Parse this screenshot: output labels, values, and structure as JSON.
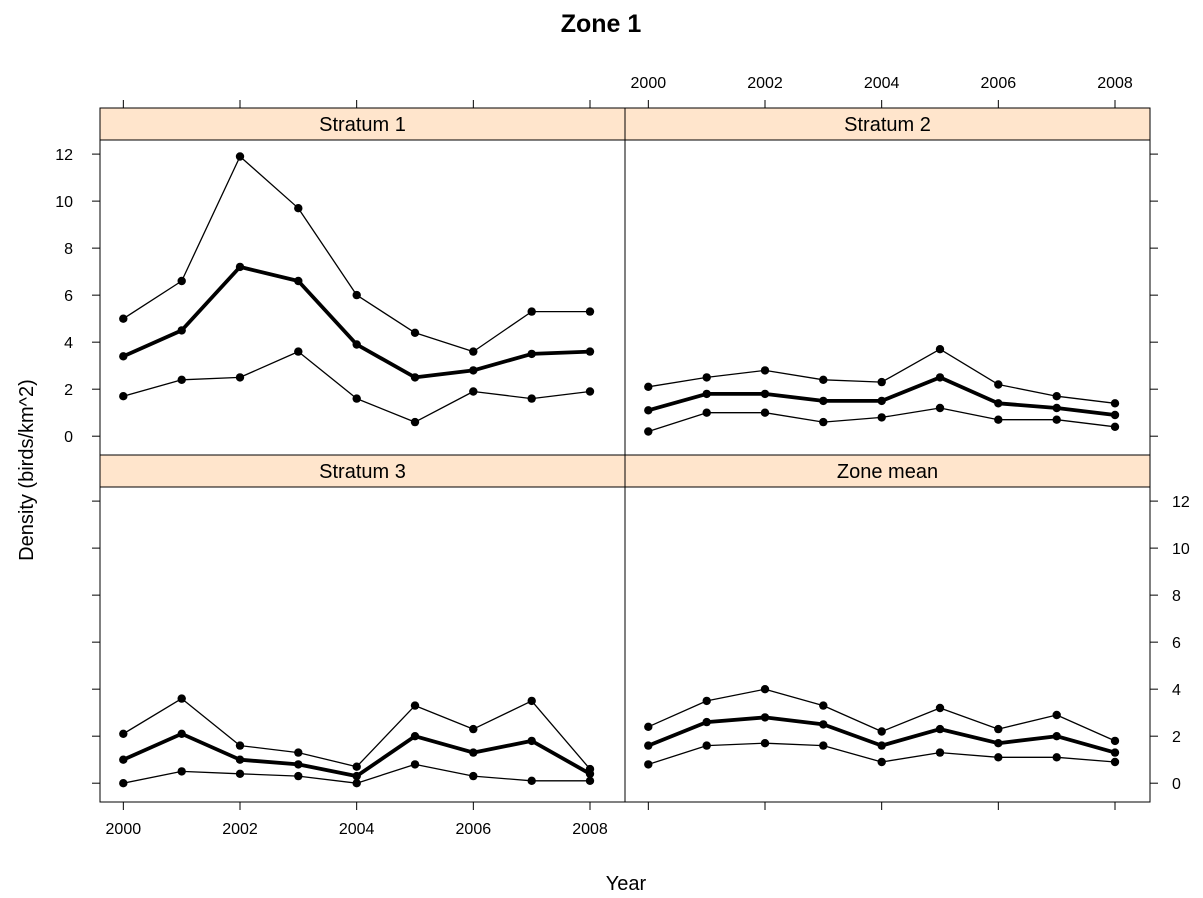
{
  "chart_data": {
    "type": "line",
    "title": "Zone 1",
    "xlabel": "Year",
    "ylabel": "Density (birds/km^2)",
    "x": [
      2000,
      2001,
      2002,
      2003,
      2004,
      2005,
      2006,
      2007,
      2008
    ],
    "x_ticks": [
      "2000",
      "2002",
      "2004",
      "2006",
      "2008"
    ],
    "y_ticks": [
      "0",
      "2",
      "4",
      "6",
      "8",
      "10",
      "12"
    ],
    "xlim": [
      1999.6,
      2008.6
    ],
    "ylim": [
      -0.8,
      12.6
    ],
    "strip_color": "#ffe5cc",
    "line_color": "#000000",
    "panels": [
      {
        "name": "Stratum 1",
        "series": [
          {
            "role": "upper",
            "values": [
              5.0,
              6.6,
              11.9,
              9.7,
              6.0,
              4.4,
              3.6,
              5.3,
              5.3
            ]
          },
          {
            "role": "mean",
            "values": [
              3.4,
              4.5,
              7.2,
              6.6,
              3.9,
              2.5,
              2.8,
              3.5,
              3.6
            ]
          },
          {
            "role": "lower",
            "values": [
              1.7,
              2.4,
              2.5,
              3.6,
              1.6,
              0.6,
              1.9,
              1.6,
              1.9
            ]
          }
        ]
      },
      {
        "name": "Stratum 2",
        "series": [
          {
            "role": "upper",
            "values": [
              2.1,
              2.5,
              2.8,
              2.4,
              2.3,
              3.7,
              2.2,
              1.7,
              1.4
            ]
          },
          {
            "role": "mean",
            "values": [
              1.1,
              1.8,
              1.8,
              1.5,
              1.5,
              2.5,
              1.4,
              1.2,
              0.9
            ]
          },
          {
            "role": "lower",
            "values": [
              0.2,
              1.0,
              1.0,
              0.6,
              0.8,
              1.2,
              0.7,
              0.7,
              0.4
            ]
          }
        ]
      },
      {
        "name": "Stratum 3",
        "series": [
          {
            "role": "upper",
            "values": [
              2.1,
              3.6,
              1.6,
              1.3,
              0.7,
              3.3,
              2.3,
              3.5,
              0.6
            ]
          },
          {
            "role": "mean",
            "values": [
              1.0,
              2.1,
              1.0,
              0.8,
              0.3,
              2.0,
              1.3,
              1.8,
              0.4
            ]
          },
          {
            "role": "lower",
            "values": [
              0.0,
              0.5,
              0.4,
              0.3,
              0.0,
              0.8,
              0.3,
              0.1,
              0.1
            ]
          }
        ]
      },
      {
        "name": "Zone mean",
        "series": [
          {
            "role": "upper",
            "values": [
              2.4,
              3.5,
              4.0,
              3.3,
              2.2,
              3.2,
              2.3,
              2.9,
              1.8
            ]
          },
          {
            "role": "mean",
            "values": [
              1.6,
              2.6,
              2.8,
              2.5,
              1.6,
              2.3,
              1.7,
              2.0,
              1.3
            ]
          },
          {
            "role": "lower",
            "values": [
              0.8,
              1.6,
              1.7,
              1.6,
              0.9,
              1.3,
              1.1,
              1.1,
              0.9
            ]
          }
        ]
      }
    ]
  }
}
